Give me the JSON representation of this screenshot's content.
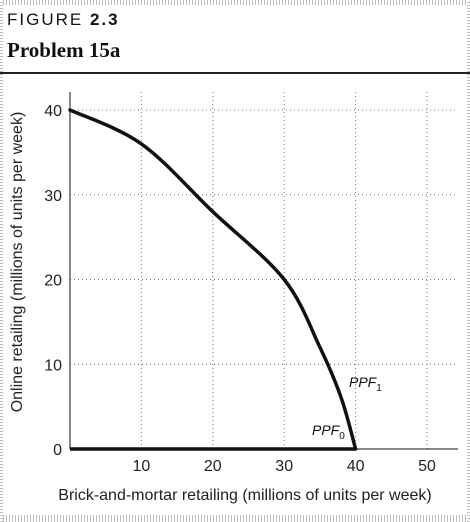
{
  "figure": {
    "label_word": "FIGURE",
    "label_number": "2.3",
    "title": "Problem 15a"
  },
  "chart_data": {
    "type": "line",
    "xlabel": "Brick-and-mortar retailing (millions of units per week)",
    "ylabel": "Online retailing (millions of units per week)",
    "xlim": [
      0,
      50
    ],
    "ylim": [
      0,
      40
    ],
    "xticks": [
      0,
      10,
      20,
      30,
      40,
      50
    ],
    "yticks": [
      0,
      10,
      20,
      30,
      40
    ],
    "x_tick_labels": [
      "10",
      "20",
      "30",
      "40",
      "50"
    ],
    "y_tick_labels": [
      "40",
      "30",
      "20",
      "10",
      "0"
    ],
    "grid": "dotted",
    "series": [
      {
        "name": "PPF1",
        "label_main": "PPF",
        "label_sub": "1",
        "color": "#111111",
        "x": [
          0,
          10,
          20,
          30,
          35,
          38,
          40
        ],
        "y": [
          40,
          36,
          28,
          20,
          12,
          6,
          0
        ]
      },
      {
        "name": "PPF0",
        "label_main": "PPF",
        "label_sub": "0",
        "color": "#111111",
        "x": [
          0,
          40
        ],
        "y": [
          0,
          0
        ]
      }
    ]
  }
}
